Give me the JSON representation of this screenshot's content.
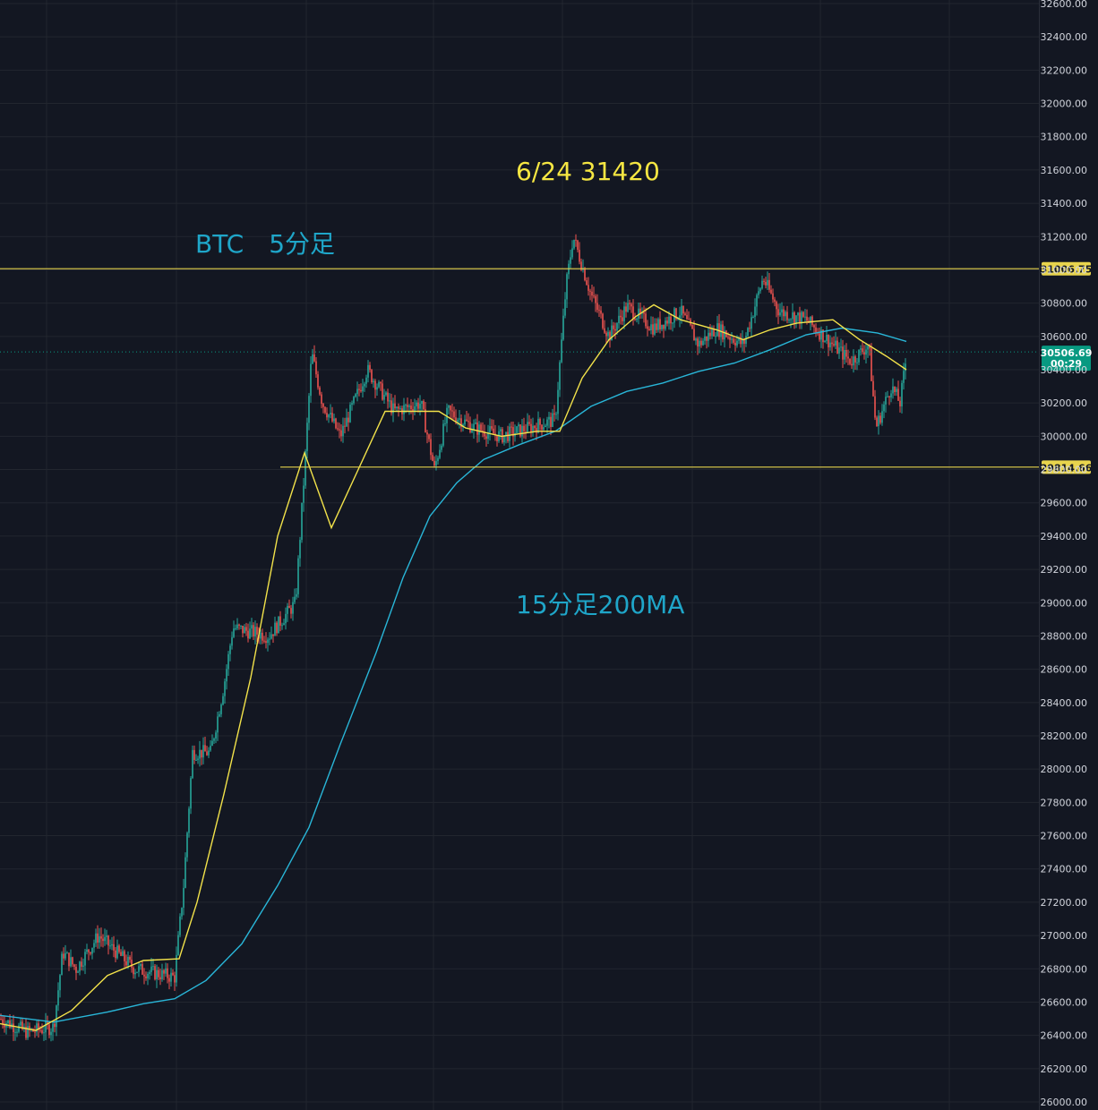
{
  "colors": {
    "background": "#131722",
    "grid": "#22262f",
    "axis_text": "#d1d4dc",
    "candle_up": "#26a69a",
    "candle_down": "#ef5350",
    "ma_fast": "#f2e24a",
    "ma_slow": "#29b6d8",
    "level_line": "#e8d44d",
    "price_tag": "#089981",
    "annotation_yellow": "#f5e642",
    "annotation_cyan": "#1fa6c9"
  },
  "annotations": {
    "symbol_label": "BTC　5分足",
    "peak_label": "6/24 31420",
    "ma_label": "15分足200MA"
  },
  "price_tags": {
    "resistance": "31006.75",
    "support": "29814.66",
    "last_price": "30506.69",
    "countdown": "00:29"
  },
  "chart_data": {
    "type": "line",
    "title": "",
    "ylim": [
      26000,
      32600
    ],
    "y_ticks": [
      "26000.00",
      "26200.00",
      "26400.00",
      "26600.00",
      "26800.00",
      "27000.00",
      "27200.00",
      "27400.00",
      "27600.00",
      "27800.00",
      "28000.00",
      "28200.00",
      "28400.00",
      "28600.00",
      "28800.00",
      "29000.00",
      "29200.00",
      "29400.00",
      "29600.00",
      "29800.00",
      "30000.00",
      "30200.00",
      "30400.00",
      "30600.00",
      "30800.00",
      "31000.00",
      "31200.00",
      "31400.00",
      "31600.00",
      "31800.00",
      "32000.00",
      "32200.00",
      "32400.00",
      "32600.00"
    ],
    "grid": true,
    "levels": [
      31006.75,
      29814.66
    ],
    "last_price": 30506.69,
    "price_anchors": [
      [
        0,
        26500
      ],
      [
        30,
        26420
      ],
      [
        60,
        26450
      ],
      [
        70,
        26900
      ],
      [
        85,
        26800
      ],
      [
        110,
        27000
      ],
      [
        150,
        26800
      ],
      [
        195,
        26750
      ],
      [
        205,
        27300
      ],
      [
        215,
        28100
      ],
      [
        235,
        28100
      ],
      [
        250,
        28500
      ],
      [
        260,
        28850
      ],
      [
        300,
        28800
      ],
      [
        330,
        29000
      ],
      [
        340,
        29800
      ],
      [
        348,
        30500
      ],
      [
        360,
        30200
      ],
      [
        380,
        30000
      ],
      [
        410,
        30400
      ],
      [
        440,
        30150
      ],
      [
        470,
        30200
      ],
      [
        485,
        29800
      ],
      [
        500,
        30150
      ],
      [
        530,
        30050
      ],
      [
        560,
        30000
      ],
      [
        590,
        30050
      ],
      [
        620,
        30100
      ],
      [
        632,
        30900
      ],
      [
        640,
        31200
      ],
      [
        660,
        30850
      ],
      [
        680,
        30600
      ],
      [
        700,
        30780
      ],
      [
        730,
        30650
      ],
      [
        760,
        30750
      ],
      [
        780,
        30550
      ],
      [
        800,
        30650
      ],
      [
        830,
        30550
      ],
      [
        852,
        30950
      ],
      [
        870,
        30750
      ],
      [
        900,
        30700
      ],
      [
        930,
        30550
      ],
      [
        950,
        30450
      ],
      [
        970,
        30550
      ],
      [
        978,
        30050
      ],
      [
        995,
        30300
      ],
      [
        1005,
        30200
      ],
      [
        1012,
        30480
      ]
    ],
    "series": [
      {
        "type": "candlestick",
        "values_note": ""
      },
      {
        "type": "line",
        "values": [
          [
            0,
            26470
          ],
          [
            40,
            26430
          ],
          [
            80,
            26550
          ],
          [
            120,
            26760
          ],
          [
            160,
            26850
          ],
          [
            200,
            26860
          ],
          [
            220,
            27200
          ],
          [
            250,
            27850
          ],
          [
            280,
            28550
          ],
          [
            310,
            29400
          ],
          [
            340,
            29900
          ],
          [
            370,
            29450
          ],
          [
            400,
            29800
          ],
          [
            430,
            30150
          ],
          [
            460,
            30150
          ],
          [
            490,
            30150
          ],
          [
            520,
            30050
          ],
          [
            560,
            30000
          ],
          [
            600,
            30030
          ],
          [
            625,
            30030
          ],
          [
            650,
            30350
          ],
          [
            680,
            30580
          ],
          [
            710,
            30720
          ],
          [
            730,
            30790
          ],
          [
            760,
            30700
          ],
          [
            800,
            30640
          ],
          [
            830,
            30580
          ],
          [
            860,
            30640
          ],
          [
            890,
            30680
          ],
          [
            930,
            30700
          ],
          [
            960,
            30580
          ],
          [
            990,
            30480
          ],
          [
            1012,
            30400
          ]
        ]
      },
      {
        "type": "line",
        "values": [
          [
            0,
            26520
          ],
          [
            60,
            26480
          ],
          [
            120,
            26540
          ],
          [
            160,
            26590
          ],
          [
            195,
            26620
          ],
          [
            230,
            26730
          ],
          [
            270,
            26950
          ],
          [
            310,
            27300
          ],
          [
            345,
            27650
          ],
          [
            380,
            28150
          ],
          [
            420,
            28700
          ],
          [
            450,
            29150
          ],
          [
            480,
            29520
          ],
          [
            510,
            29720
          ],
          [
            540,
            29860
          ],
          [
            580,
            29950
          ],
          [
            620,
            30030
          ],
          [
            660,
            30180
          ],
          [
            700,
            30270
          ],
          [
            740,
            30320
          ],
          [
            780,
            30390
          ],
          [
            820,
            30440
          ],
          [
            860,
            30520
          ],
          [
            900,
            30610
          ],
          [
            940,
            30650
          ],
          [
            980,
            30620
          ],
          [
            1012,
            30570
          ]
        ]
      }
    ]
  }
}
